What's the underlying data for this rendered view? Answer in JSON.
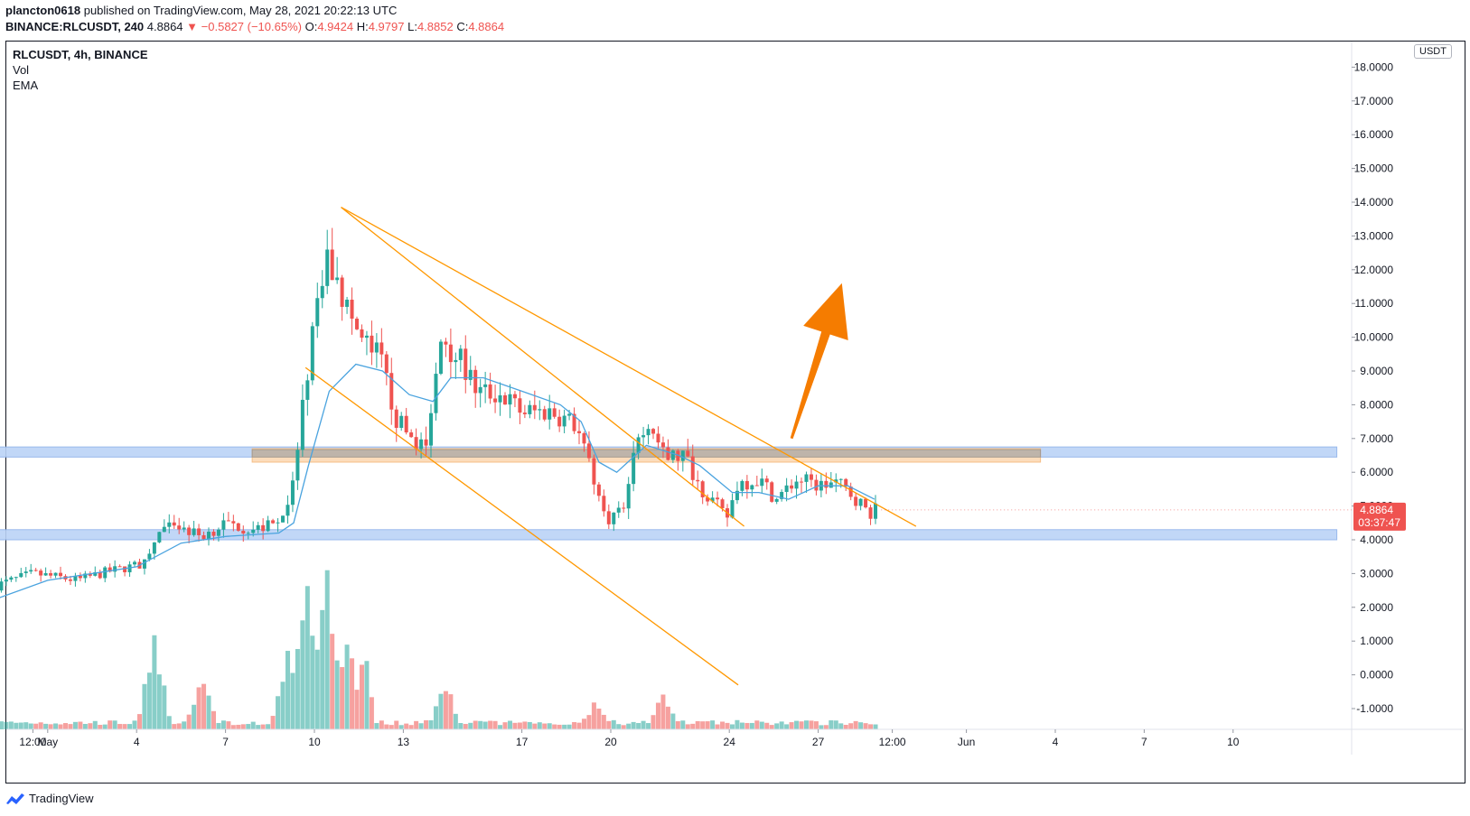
{
  "header": {
    "author": "plancton0618",
    "published": "published on TradingView.com, May 28, 2021 20:22:13 UTC",
    "symbol": "BINANCE:RLCUSDT, 240",
    "last": "4.8864",
    "change": "−0.5827 (−10.65%)",
    "open_label": "O:",
    "open": "4.9424",
    "high_label": "H:",
    "high": "4.9797",
    "low_label": "L:",
    "low": "4.8852",
    "close_label": "C:",
    "close": "4.8864"
  },
  "legend": {
    "title": "RLCUSDT, 4h, BINANCE",
    "vol": "Vol",
    "ema": "EMA"
  },
  "price_axis": {
    "unit": "USDT"
  },
  "price_tag": {
    "value": "4.8864",
    "countdown": "03:37:47"
  },
  "footer": {
    "brand": "TradingView"
  },
  "colors": {
    "up": "#26a69a",
    "down": "#ef5350",
    "ema": "#4aa3df",
    "trendline": "#ff9800",
    "arrow": "#f57c00",
    "blue_zone": "#bbd3f7",
    "orange_zone": "#fcd9b4",
    "gray_zone": "#b5aea8"
  },
  "chart_data": {
    "type": "candlestick",
    "symbol": "RLCUSDT",
    "timeframe": "4h",
    "exchange": "BINANCE",
    "y_range": [
      -1.4,
      18.5
    ],
    "y_ticks": [
      "18.0000",
      "17.0000",
      "16.0000",
      "15.0000",
      "14.0000",
      "13.0000",
      "12.0000",
      "11.0000",
      "10.0000",
      "9.0000",
      "8.0000",
      "7.0000",
      "6.0000",
      "5.0000",
      "4.0000",
      "3.0000",
      "2.0000",
      "1.0000",
      "0.0000",
      "-1.0000"
    ],
    "x_ticks": [
      {
        "label": "12:00",
        "day": 0.5
      },
      {
        "label": "May",
        "day": 1
      },
      {
        "label": "4",
        "day": 4
      },
      {
        "label": "7",
        "day": 7
      },
      {
        "label": "10",
        "day": 10
      },
      {
        "label": "13",
        "day": 13
      },
      {
        "label": "17",
        "day": 17
      },
      {
        "label": "20",
        "day": 20
      },
      {
        "label": "24",
        "day": 24
      },
      {
        "label": "27",
        "day": 27
      },
      {
        "label": "12:00",
        "day": 29.5
      },
      {
        "label": "Jun",
        "day": 32
      },
      {
        "label": "4",
        "day": 35
      },
      {
        "label": "7",
        "day": 38
      },
      {
        "label": "10",
        "day": 41
      }
    ],
    "price_path": [
      [
        -0.9,
        2.6
      ],
      [
        0.5,
        3.0
      ],
      [
        2.0,
        2.8
      ],
      [
        3.0,
        3.05
      ],
      [
        4.3,
        3.3
      ],
      [
        4.8,
        4.3
      ],
      [
        5.5,
        4.35
      ],
      [
        6.2,
        4.1
      ],
      [
        7.0,
        4.5
      ],
      [
        8.0,
        4.3
      ],
      [
        8.8,
        4.5
      ],
      [
        9.3,
        5.6
      ],
      [
        9.5,
        7.2
      ],
      [
        9.8,
        9.3
      ],
      [
        10.2,
        11.6
      ],
      [
        10.45,
        12.2
      ],
      [
        10.9,
        11.3
      ],
      [
        11.5,
        10.0
      ],
      [
        12.2,
        9.4
      ],
      [
        12.8,
        7.5
      ],
      [
        13.2,
        7.1
      ],
      [
        13.8,
        6.7
      ],
      [
        14.3,
        10.1
      ],
      [
        14.9,
        9.3
      ],
      [
        15.5,
        8.4
      ],
      [
        16.3,
        8.3
      ],
      [
        17.0,
        7.8
      ],
      [
        18.0,
        7.8
      ],
      [
        18.8,
        7.4
      ],
      [
        19.3,
        6.3
      ],
      [
        19.8,
        4.6
      ],
      [
        20.5,
        4.9
      ],
      [
        20.9,
        7.2
      ],
      [
        21.3,
        7.6
      ],
      [
        21.8,
        6.4
      ],
      [
        22.5,
        6.5
      ],
      [
        23.0,
        5.6
      ],
      [
        23.5,
        5.1
      ],
      [
        23.9,
        4.6
      ],
      [
        24.3,
        5.7
      ],
      [
        25.0,
        5.8
      ],
      [
        25.6,
        5.2
      ],
      [
        26.3,
        5.8
      ],
      [
        27.0,
        5.6
      ],
      [
        27.6,
        5.7
      ],
      [
        28.2,
        5.3
      ],
      [
        28.7,
        4.8
      ],
      [
        29.0,
        4.89
      ]
    ],
    "volume_peaks": [
      {
        "day": 4.6,
        "value": 1.0
      },
      {
        "day": 6.2,
        "value": 0.58
      },
      {
        "day": 9.1,
        "value": 0.88
      },
      {
        "day": 9.8,
        "value": 1.6
      },
      {
        "day": 10.4,
        "value": 1.7
      },
      {
        "day": 14.4,
        "value": 0.55
      },
      {
        "day": 19.5,
        "value": 0.32
      },
      {
        "day": 21.8,
        "value": 0.4
      }
    ],
    "ema_path": [
      [
        -0.9,
        2.2
      ],
      [
        1.0,
        2.8
      ],
      [
        4.0,
        3.2
      ],
      [
        5.5,
        3.9
      ],
      [
        7.0,
        4.1
      ],
      [
        8.8,
        4.2
      ],
      [
        9.3,
        4.5
      ],
      [
        9.8,
        6.2
      ],
      [
        10.5,
        8.4
      ],
      [
        11.4,
        9.2
      ],
      [
        12.3,
        9.0
      ],
      [
        13.2,
        8.3
      ],
      [
        14.0,
        8.1
      ],
      [
        14.6,
        8.8
      ],
      [
        15.7,
        8.8
      ],
      [
        17.0,
        8.4
      ],
      [
        18.3,
        8.0
      ],
      [
        19.0,
        7.5
      ],
      [
        19.6,
        6.3
      ],
      [
        20.2,
        6.0
      ],
      [
        21.2,
        6.8
      ],
      [
        22.3,
        6.5
      ],
      [
        23.0,
        6.2
      ],
      [
        24.1,
        5.4
      ],
      [
        25.0,
        5.4
      ],
      [
        26.0,
        5.2
      ],
      [
        27.0,
        5.6
      ],
      [
        28.0,
        5.6
      ],
      [
        28.9,
        5.2
      ]
    ],
    "trendlines": [
      {
        "from": [
          10.9,
          13.85
        ],
        "to": [
          30.3,
          4.4
        ]
      },
      {
        "from": [
          10.9,
          13.85
        ],
        "to": [
          24.5,
          4.4
        ]
      },
      {
        "from": [
          9.7,
          9.1
        ],
        "to": [
          24.3,
          -0.3
        ]
      }
    ],
    "zones": [
      {
        "color": "blue",
        "y": [
          6.45,
          6.75
        ],
        "x": [
          -0.9,
          44.5
        ]
      },
      {
        "color": "blue",
        "y": [
          4.0,
          4.3
        ],
        "x": [
          -0.9,
          44.5
        ]
      },
      {
        "color": "orange",
        "y": [
          6.3,
          6.7
        ],
        "x": [
          7.9,
          34.5
        ]
      },
      {
        "color": "gray",
        "y": [
          6.45,
          6.67
        ],
        "x": [
          7.9,
          34.5
        ]
      }
    ],
    "arrow": {
      "from": [
        26.1,
        7.0
      ],
      "to": [
        27.8,
        11.6
      ]
    },
    "last_price": 4.8864
  }
}
